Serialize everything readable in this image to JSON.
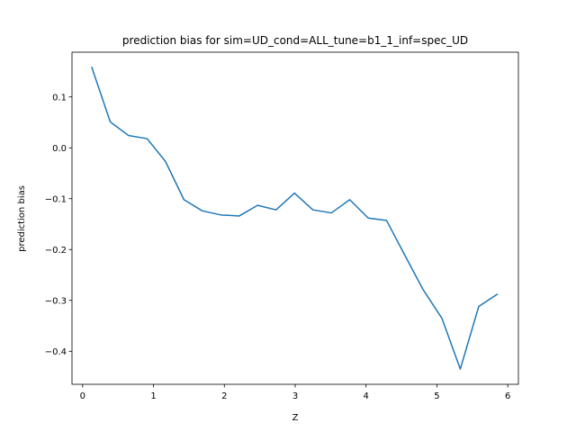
{
  "chart_data": {
    "type": "line",
    "title": "prediction bias for sim=UD_cond=ALL_tune=b1_1_inf=spec_UD",
    "xlabel": "Z",
    "ylabel": "prediction bias",
    "xlim": [
      -0.15,
      6.15
    ],
    "ylim": [
      -0.465,
      0.188
    ],
    "xticks": [
      0,
      1,
      2,
      3,
      4,
      5,
      6
    ],
    "xtick_labels": [
      "0",
      "1",
      "2",
      "3",
      "4",
      "5",
      "6"
    ],
    "yticks": [
      -0.4,
      -0.3,
      -0.2,
      -0.1,
      0.0,
      0.1
    ],
    "ytick_labels": [
      "−0.4",
      "−0.3",
      "−0.2",
      "−0.1",
      "0.0",
      "0.1"
    ],
    "grid": false,
    "series": [
      {
        "color": "#1f77b4",
        "x": [
          0.13,
          0.39,
          0.65,
          0.91,
          1.17,
          1.43,
          1.69,
          1.95,
          2.21,
          2.47,
          2.73,
          2.99,
          3.25,
          3.51,
          3.77,
          4.03,
          4.29,
          4.55,
          4.81,
          5.07,
          5.33,
          5.59,
          5.85
        ],
        "y": [
          0.158,
          0.051,
          0.024,
          0.018,
          -0.027,
          -0.102,
          -0.124,
          -0.132,
          -0.134,
          -0.113,
          -0.122,
          -0.089,
          -0.122,
          -0.128,
          -0.102,
          -0.138,
          -0.143,
          -0.212,
          -0.28,
          -0.335,
          -0.435,
          -0.312,
          -0.288
        ]
      }
    ]
  }
}
